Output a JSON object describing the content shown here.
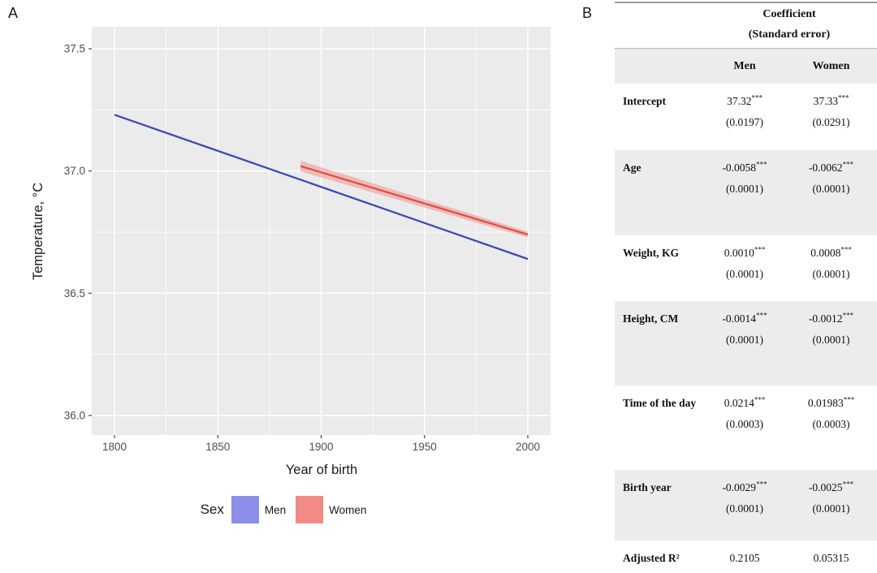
{
  "panels": {
    "a_label": "A",
    "b_label": "B"
  },
  "chart_data": {
    "type": "line",
    "title": "",
    "xlabel": "Year of birth",
    "ylabel": "Temperature, °C",
    "xlim": [
      1789,
      2011
    ],
    "ylim": [
      35.92,
      37.59
    ],
    "x_ticks": [
      "1800",
      "1850",
      "1900",
      "1950",
      "2000"
    ],
    "y_ticks": [
      "36.0",
      "36.5",
      "37.0",
      "37.5"
    ],
    "x_minor": [
      1825,
      1875,
      1925,
      1975
    ],
    "y_minor": [
      36.25,
      36.75,
      37.25
    ],
    "grid": true,
    "panel_bg": "#EBEBEB",
    "grid_color": "#FFFFFF",
    "legend_position": "bottom",
    "legend_title": "Sex",
    "series": [
      {
        "name": "Men",
        "line_color": "#3E4BB5",
        "legend_fill": "#8B8FE9",
        "x": [
          1800,
          2000
        ],
        "y": [
          37.23,
          36.64
        ]
      },
      {
        "name": "Women",
        "line_color": "#DF4F48",
        "legend_fill": "#F28B86",
        "x": [
          1890,
          2000
        ],
        "y": [
          37.02,
          36.74
        ],
        "band": {
          "x": [
            1890,
            2000
          ],
          "upper": [
            37.042,
            36.752
          ],
          "lower": [
            36.998,
            36.728
          ],
          "fill": "#F07F7A"
        }
      }
    ]
  },
  "table": {
    "title_line1": "Coefficient",
    "title_line2": "(Standard error)",
    "columns": [
      "Men",
      "Women"
    ],
    "rows": [
      {
        "label": "Intercept",
        "men": "37.32",
        "men_stars": "***",
        "men_se": "(0.0197)",
        "women": "37.33",
        "women_stars": "***",
        "women_se": "(0.0291)"
      },
      {
        "label": "Age",
        "men": "-0.0058",
        "men_stars": "***",
        "men_se": "(0.0001)",
        "women": "-0.0062",
        "women_stars": "***",
        "women_se": "(0.0001)"
      },
      {
        "label": "Weight, KG",
        "men": "0.0010",
        "men_stars": "***",
        "men_se": "(0.0001)",
        "women": "0.0008",
        "women_stars": "***",
        "women_se": "(0.0001)"
      },
      {
        "label": "Height, CM",
        "men": "-0.0014",
        "men_stars": "***",
        "men_se": "(0.0001)",
        "women": "-0.0012",
        "women_stars": "***",
        "women_se": "(0.0001)"
      },
      {
        "label": "Time of the day",
        "men": "0.0214",
        "men_stars": "***",
        "men_se": "(0.0003)",
        "women": "0.01983",
        "women_stars": "***",
        "women_se": "(0.0003)"
      },
      {
        "label": "Birth year",
        "men": "-0.0029",
        "men_stars": "***",
        "men_se": "(0.0001)",
        "women": "-0.0025",
        "women_stars": "***",
        "women_se": "(0.0001)"
      },
      {
        "label": "Adjusted R²",
        "men": "0.2105",
        "men_stars": "",
        "men_se": "",
        "women": "0.05315",
        "women_stars": "",
        "women_se": ""
      }
    ]
  }
}
